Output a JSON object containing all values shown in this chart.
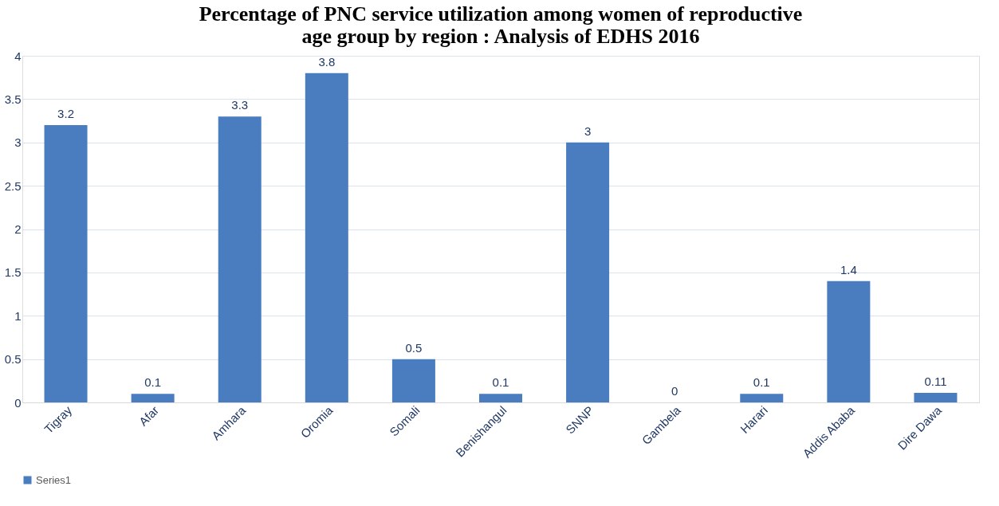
{
  "chart_data": {
    "type": "bar",
    "title": "Percentage of PNC service utilization among women of reproductive\nage group by region : Analysis of EDHS 2016",
    "categories": [
      "Tigray",
      "Afar",
      "Amhara",
      "Oromia",
      "Somali",
      "Benishangul",
      "SNNP",
      "Gambela",
      "Harari",
      "Addis Ababa",
      "Dire Dawa"
    ],
    "series": [
      {
        "name": "Series1",
        "color": "#4a7dc0",
        "values": [
          3.2,
          0.1,
          3.3,
          3.8,
          0.5,
          0.1,
          3,
          0,
          0.1,
          1.4,
          0.11
        ]
      }
    ],
    "ylim": [
      0,
      4
    ],
    "yticks": [
      0,
      0.5,
      1,
      1.5,
      2,
      2.5,
      3,
      3.5,
      4
    ],
    "grid": "y",
    "legend": "bottom",
    "data_labels": true
  }
}
